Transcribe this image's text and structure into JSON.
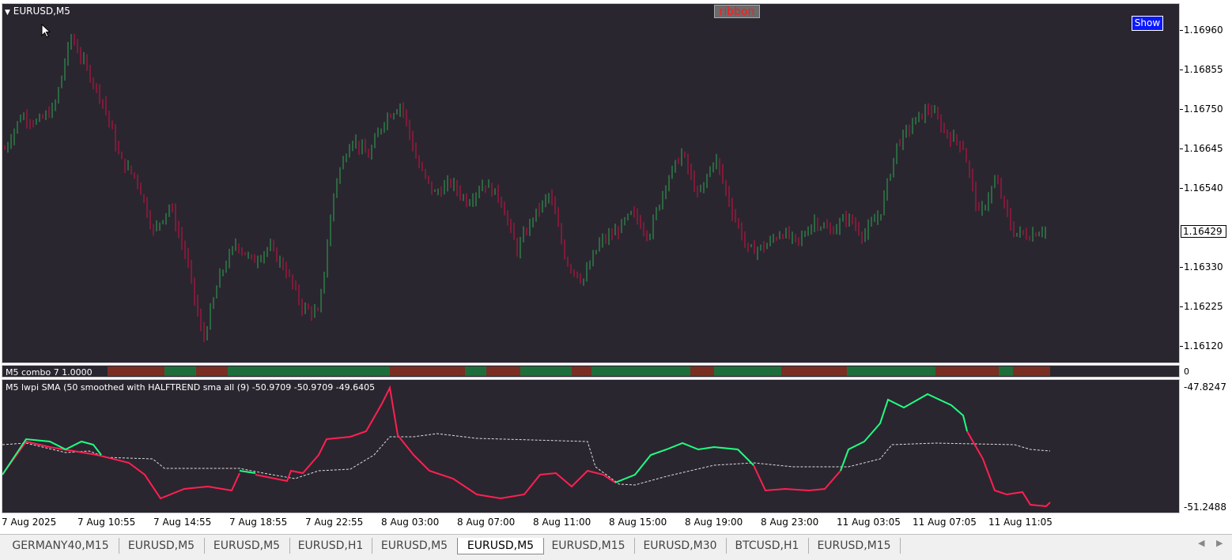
{
  "chart": {
    "symbol_label": "EURUSD,M5",
    "ribbon_button": "ribbon",
    "show_button": "Show",
    "current_price": "1.16429",
    "price_scale": [
      "1.16960",
      "1.16855",
      "1.16750",
      "1.16645",
      "1.16540",
      "1.16330",
      "1.16225",
      "1.16120"
    ],
    "combo_label": "M5 combo 7  1.0000",
    "combo_scale": "0",
    "osc_label": "M5 lwpi SMA (50 smoothed with HALFTREND sma all (9) -50.9709 -50.9709 -49.6405",
    "osc_scale_top": "-47.8247",
    "osc_scale_bottom": "-51.2488",
    "time_labels": [
      "7 Aug 2025",
      "7 Aug 10:55",
      "7 Aug 14:55",
      "7 Aug 18:55",
      "7 Aug 22:55",
      "8 Aug 03:00",
      "8 Aug 07:00",
      "8 Aug 11:00",
      "8 Aug 15:00",
      "8 Aug 19:00",
      "8 Aug 23:00",
      "11 Aug 03:05",
      "11 Aug 07:05",
      "11 Aug 11:05"
    ],
    "colors": {
      "background": "#2a2630",
      "bull": "#2fa84f",
      "bear": "#d01040",
      "osc_up": "#20ff80",
      "osc_down": "#ff2050",
      "signal": "#dddddd"
    }
  },
  "tabs": [
    {
      "label": "GERMANY40,M15"
    },
    {
      "label": "EURUSD,M5"
    },
    {
      "label": "EURUSD,M5"
    },
    {
      "label": "EURUSD,H1"
    },
    {
      "label": "EURUSD,M5"
    },
    {
      "label": "EURUSD,M5",
      "active": true
    },
    {
      "label": "EURUSD,M15"
    },
    {
      "label": "EURUSD,M30"
    },
    {
      "label": "BTCUSD,H1"
    },
    {
      "label": "EURUSD,M15"
    }
  ],
  "chart_data": {
    "type": "candlestick",
    "price_path": [
      1.1665,
      1.1674,
      1.1672,
      1.1676,
      1.1695,
      1.1686,
      1.1677,
      1.1662,
      1.1657,
      1.1643,
      1.165,
      1.1636,
      1.1614,
      1.1631,
      1.164,
      1.1635,
      1.1639,
      1.1633,
      1.1623,
      1.1621,
      1.1656,
      1.1668,
      1.1663,
      1.1673,
      1.1677,
      1.1661,
      1.1653,
      1.1656,
      1.1651,
      1.1656,
      1.1652,
      1.1638,
      1.1647,
      1.1653,
      1.1635,
      1.163,
      1.164,
      1.1643,
      1.1648,
      1.1642,
      1.1656,
      1.1664,
      1.1652,
      1.1663,
      1.1649,
      1.1638,
      1.1639,
      1.1643,
      1.164,
      1.1646,
      1.1643,
      1.1647,
      1.1642,
      1.1648,
      1.1666,
      1.1672,
      1.1676,
      1.1669,
      1.1666,
      1.1647,
      1.1657,
      1.1643,
      1.1642,
      1.1644
    ]
  }
}
